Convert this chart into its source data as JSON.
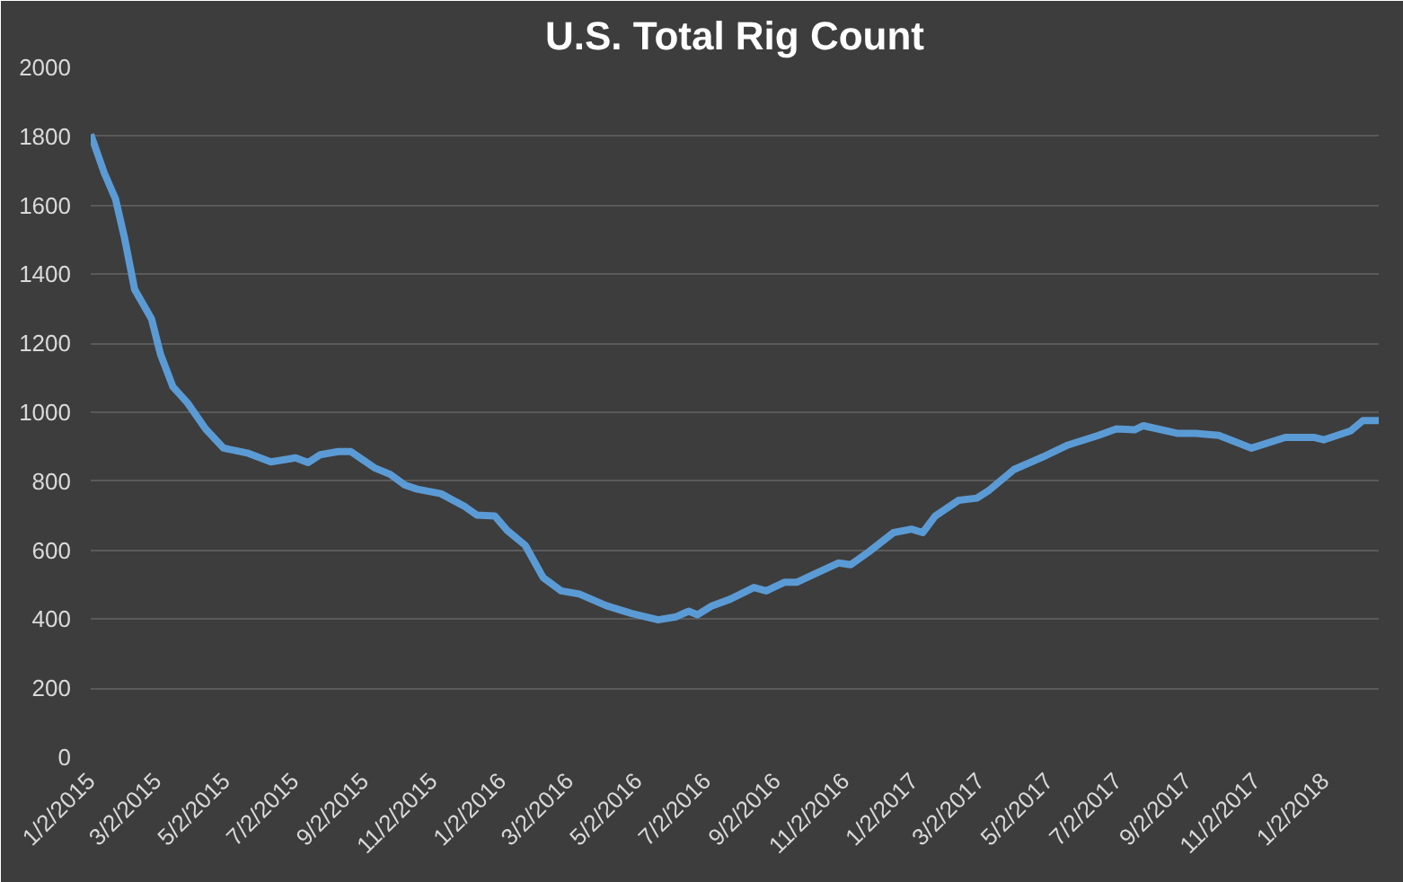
{
  "chart_data": {
    "type": "line",
    "title": "U.S. Total Rig Count",
    "x": [
      "2015-01-02",
      "2015-01-14",
      "2015-01-24",
      "2015-02-01",
      "2015-02-10",
      "2015-02-25",
      "2015-03-05",
      "2015-03-16",
      "2015-03-29",
      "2015-04-14",
      "2015-04-30",
      "2015-05-21",
      "2015-06-11",
      "2015-07-03",
      "2015-07-14",
      "2015-07-25",
      "2015-08-10",
      "2015-08-21",
      "2015-09-11",
      "2015-09-25",
      "2015-10-08",
      "2015-10-19",
      "2015-11-09",
      "2015-11-30",
      "2015-12-11",
      "2015-12-27",
      "2016-01-07",
      "2016-01-23",
      "2016-02-08",
      "2016-02-24",
      "2016-03-11",
      "2016-04-04",
      "2016-04-26",
      "2016-05-20",
      "2016-06-05",
      "2016-06-16",
      "2016-06-24",
      "2016-07-07",
      "2016-07-23",
      "2016-08-13",
      "2016-08-24",
      "2016-09-09",
      "2016-09-20",
      "2016-10-11",
      "2016-10-27",
      "2016-11-07",
      "2016-11-23",
      "2016-12-15",
      "2016-12-31",
      "2017-01-10",
      "2017-01-21",
      "2017-02-11",
      "2017-02-27",
      "2017-03-10",
      "2017-04-01",
      "2017-04-27",
      "2017-05-19",
      "2017-06-15",
      "2017-07-01",
      "2017-07-17",
      "2017-07-25",
      "2017-08-24",
      "2017-09-09",
      "2017-09-30",
      "2017-10-29",
      "2017-11-28",
      "2017-12-24",
      "2018-01-01",
      "2018-01-25",
      "2018-02-05",
      "2018-02-19"
    ],
    "series": [
      {
        "color": "#5b9bd5",
        "values": [
          1806,
          1694,
          1619,
          1506,
          1356,
          1271,
          1168,
          1074,
          1027,
          952,
          896,
          882,
          856,
          868,
          854,
          877,
          886,
          886,
          839,
          820,
          789,
          777,
          764,
          727,
          702,
          699,
          657,
          614,
          520,
          482,
          473,
          439,
          417,
          398,
          407,
          423,
          413,
          439,
          458,
          492,
          482,
          507,
          507,
          539,
          563,
          558,
          595,
          651,
          661,
          651,
          699,
          745,
          751,
          774,
          834,
          871,
          905,
          933,
          952,
          949,
          961,
          939,
          939,
          933,
          896,
          927,
          927,
          920,
          946,
          976,
          976
        ]
      }
    ],
    "xlim": [
      "2015-01-02",
      "2018-02-19"
    ],
    "xticks": [
      {
        "value": "2015-01-02",
        "label": "1/2/2015"
      },
      {
        "value": "2015-03-02",
        "label": "3/2/2015"
      },
      {
        "value": "2015-05-02",
        "label": "5/2/2015"
      },
      {
        "value": "2015-07-02",
        "label": "7/2/2015"
      },
      {
        "value": "2015-09-02",
        "label": "9/2/2015"
      },
      {
        "value": "2015-11-02",
        "label": "11/2/2015"
      },
      {
        "value": "2016-01-02",
        "label": "1/2/2016"
      },
      {
        "value": "2016-03-02",
        "label": "3/2/2016"
      },
      {
        "value": "2016-05-02",
        "label": "5/2/2016"
      },
      {
        "value": "2016-07-02",
        "label": "7/2/2016"
      },
      {
        "value": "2016-09-02",
        "label": "9/2/2016"
      },
      {
        "value": "2016-11-02",
        "label": "11/2/2016"
      },
      {
        "value": "2017-01-02",
        "label": "1/2/2017"
      },
      {
        "value": "2017-03-02",
        "label": "3/2/2017"
      },
      {
        "value": "2017-05-02",
        "label": "5/2/2017"
      },
      {
        "value": "2017-07-02",
        "label": "7/2/2017"
      },
      {
        "value": "2017-09-02",
        "label": "9/2/2017"
      },
      {
        "value": "2017-11-02",
        "label": "11/2/2017"
      },
      {
        "value": "2018-01-02",
        "label": "1/2/2018"
      }
    ],
    "ylim": [
      0,
      2000
    ],
    "yticks": [
      0,
      200,
      400,
      600,
      800,
      1000,
      1200,
      1400,
      1600,
      1800,
      2000
    ],
    "grid": "y",
    "marker": "none",
    "line_style": "solid"
  }
}
